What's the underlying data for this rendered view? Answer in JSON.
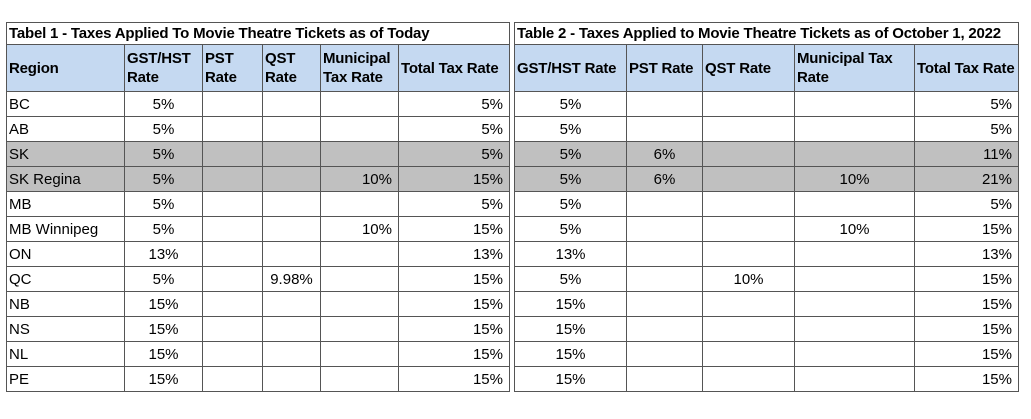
{
  "table1": {
    "title": "Tabel 1 - Taxes Applied To Movie Theatre Tickets as of Today",
    "headers": [
      "Region",
      "GST/HST Rate",
      "PST Rate",
      "QST Rate",
      "Municipal Tax Rate",
      "Total Tax Rate"
    ]
  },
  "table2": {
    "title": "Table 2 - Taxes Applied to Movie Theatre Tickets as of October 1, 2022",
    "headers": [
      "GST/HST Rate",
      "PST Rate",
      "QST Rate",
      "Municipal Tax Rate",
      "Total Tax Rate"
    ]
  },
  "rows": [
    {
      "region": "BC",
      "t1": [
        "5%",
        "",
        "",
        "",
        "5%"
      ],
      "t2": [
        "5%",
        "",
        "",
        "",
        "5%"
      ],
      "shaded": false
    },
    {
      "region": "AB",
      "t1": [
        "5%",
        "",
        "",
        "",
        "5%"
      ],
      "t2": [
        "5%",
        "",
        "",
        "",
        "5%"
      ],
      "shaded": false
    },
    {
      "region": "SK",
      "t1": [
        "5%",
        "",
        "",
        "",
        "5%"
      ],
      "t2": [
        "5%",
        "6%",
        "",
        "",
        "11%"
      ],
      "shaded": true
    },
    {
      "region": "SK Regina",
      "t1": [
        "5%",
        "",
        "",
        "10%",
        "15%"
      ],
      "t2": [
        "5%",
        "6%",
        "",
        "10%",
        "21%"
      ],
      "shaded": true
    },
    {
      "region": "MB",
      "t1": [
        "5%",
        "",
        "",
        "",
        "5%"
      ],
      "t2": [
        "5%",
        "",
        "",
        "",
        "5%"
      ],
      "shaded": false
    },
    {
      "region": "MB Winnipeg",
      "t1": [
        "5%",
        "",
        "",
        "10%",
        "15%"
      ],
      "t2": [
        "5%",
        "",
        "",
        "10%",
        "15%"
      ],
      "shaded": false
    },
    {
      "region": "ON",
      "t1": [
        "13%",
        "",
        "",
        "",
        "13%"
      ],
      "t2": [
        "13%",
        "",
        "",
        "",
        "13%"
      ],
      "shaded": false
    },
    {
      "region": "QC",
      "t1": [
        "5%",
        "",
        "9.98%",
        "",
        "15%"
      ],
      "t2": [
        "5%",
        "",
        "10%",
        "",
        "15%"
      ],
      "shaded": false
    },
    {
      "region": "NB",
      "t1": [
        "15%",
        "",
        "",
        "",
        "15%"
      ],
      "t2": [
        "15%",
        "",
        "",
        "",
        "15%"
      ],
      "shaded": false
    },
    {
      "region": "NS",
      "t1": [
        "15%",
        "",
        "",
        "",
        "15%"
      ],
      "t2": [
        "15%",
        "",
        "",
        "",
        "15%"
      ],
      "shaded": false
    },
    {
      "region": "NL",
      "t1": [
        "15%",
        "",
        "",
        "",
        "15%"
      ],
      "t2": [
        "15%",
        "",
        "",
        "",
        "15%"
      ],
      "shaded": false
    },
    {
      "region": "PE",
      "t1": [
        "15%",
        "",
        "",
        "",
        "15%"
      ],
      "t2": [
        "15%",
        "",
        "",
        "",
        "15%"
      ],
      "shaded": false
    }
  ],
  "colors": {
    "header_bg": "#c5d9f1",
    "shaded_row_bg": "#c0c0c0",
    "border": "#555555"
  }
}
